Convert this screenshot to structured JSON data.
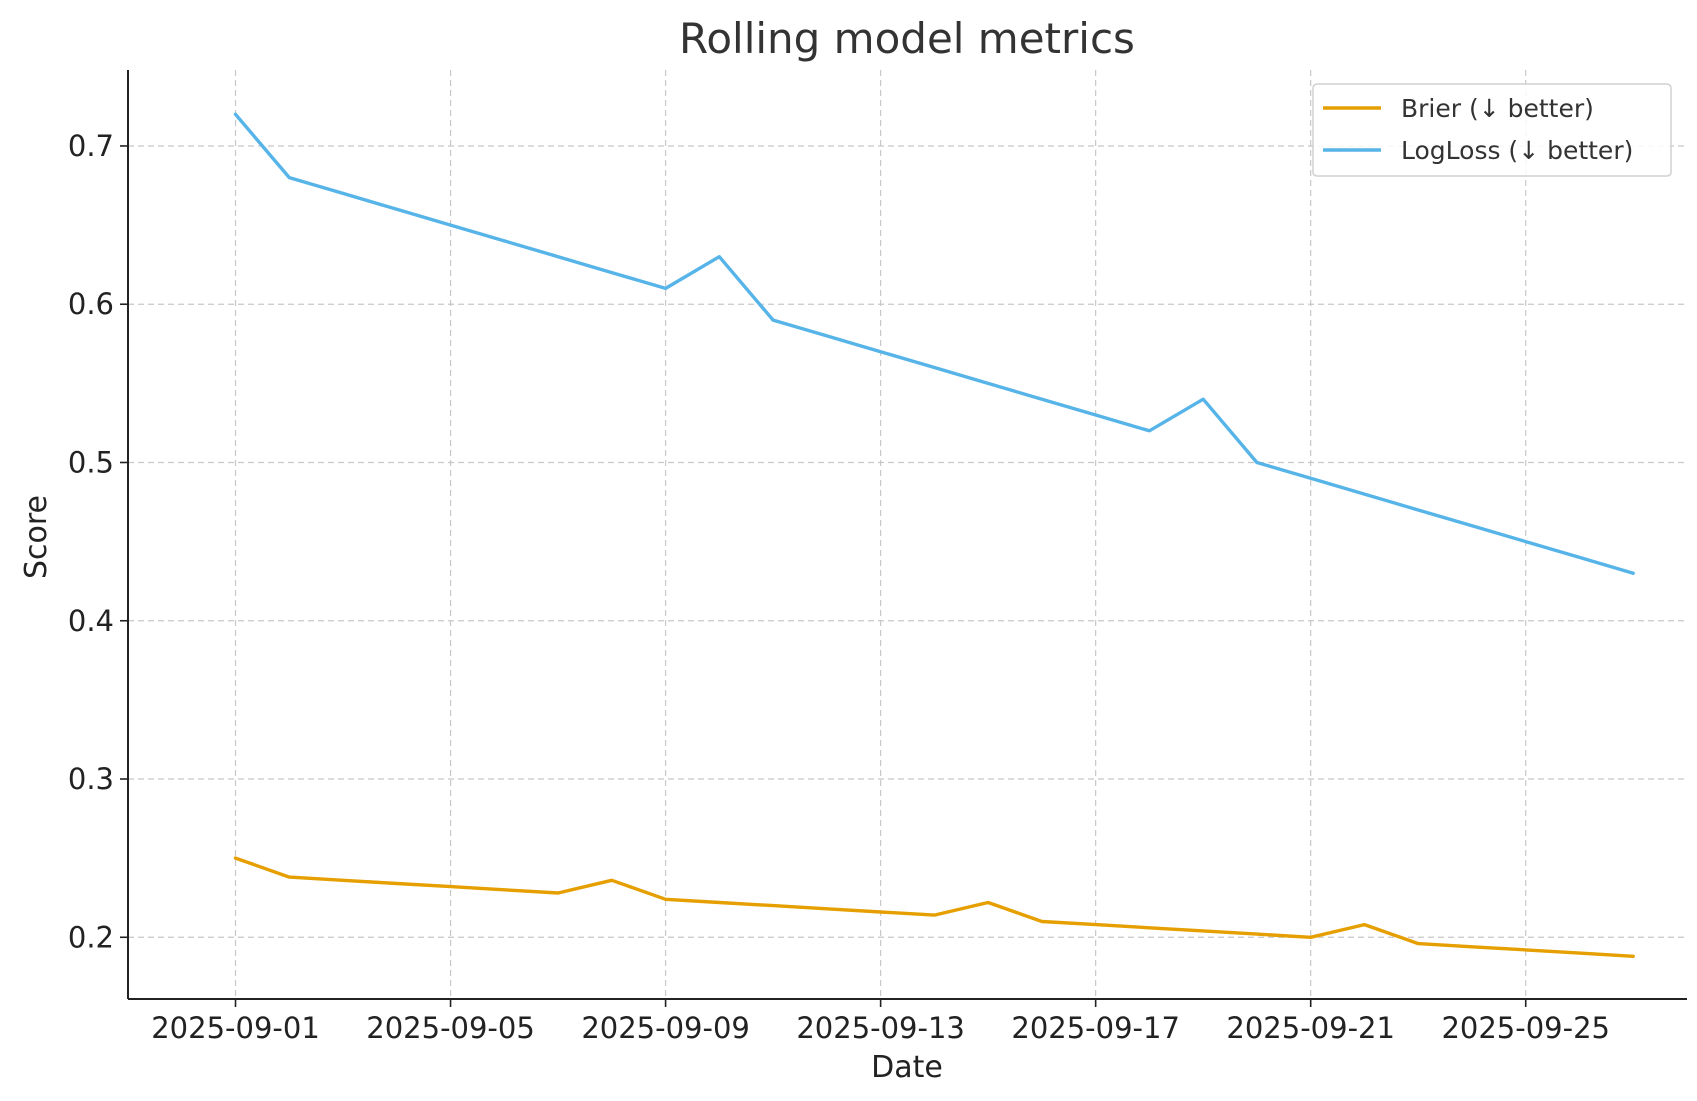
{
  "chart_data": {
    "type": "line",
    "title": "Rolling model metrics",
    "xlabel": "Date",
    "ylabel": "Score",
    "x_type": "date",
    "xlim": [
      "2025-08-30",
      "2025-09-28"
    ],
    "ylim": [
      0.161,
      0.748
    ],
    "x_ticks": [
      "2025-09-01",
      "2025-09-05",
      "2025-09-09",
      "2025-09-13",
      "2025-09-17",
      "2025-09-21",
      "2025-09-25"
    ],
    "y_ticks": [
      0.2,
      0.3,
      0.4,
      0.5,
      0.6,
      0.7
    ],
    "y_tick_labels": [
      "0.2",
      "0.3",
      "0.4",
      "0.5",
      "0.6",
      "0.7"
    ],
    "grid": true,
    "legend_position": "top-right",
    "x": [
      "2025-09-01",
      "2025-09-02",
      "2025-09-03",
      "2025-09-04",
      "2025-09-05",
      "2025-09-06",
      "2025-09-07",
      "2025-09-08",
      "2025-09-09",
      "2025-09-10",
      "2025-09-11",
      "2025-09-12",
      "2025-09-13",
      "2025-09-14",
      "2025-09-15",
      "2025-09-16",
      "2025-09-17",
      "2025-09-18",
      "2025-09-19",
      "2025-09-20",
      "2025-09-21",
      "2025-09-22",
      "2025-09-23",
      "2025-09-24",
      "2025-09-25",
      "2025-09-26",
      "2025-09-27"
    ],
    "series": [
      {
        "name": "Brier (↓ better)",
        "color": "#E69F00",
        "values": [
          0.25,
          0.238,
          0.236,
          0.234,
          0.232,
          0.23,
          0.228,
          0.236,
          0.224,
          0.222,
          0.22,
          0.218,
          0.216,
          0.214,
          0.222,
          0.21,
          0.208,
          0.206,
          0.204,
          0.202,
          0.2,
          0.208,
          0.196,
          0.194,
          0.192,
          0.19,
          0.188
        ]
      },
      {
        "name": "LogLoss (↓ better)",
        "color": "#56B4E9",
        "values": [
          0.72,
          0.68,
          0.67,
          0.66,
          0.65,
          0.64,
          0.63,
          0.62,
          0.61,
          0.63,
          0.59,
          0.58,
          0.57,
          0.56,
          0.55,
          0.54,
          0.53,
          0.52,
          0.54,
          0.5,
          0.49,
          0.48,
          0.47,
          0.46,
          0.45,
          0.44,
          0.43
        ]
      }
    ]
  }
}
